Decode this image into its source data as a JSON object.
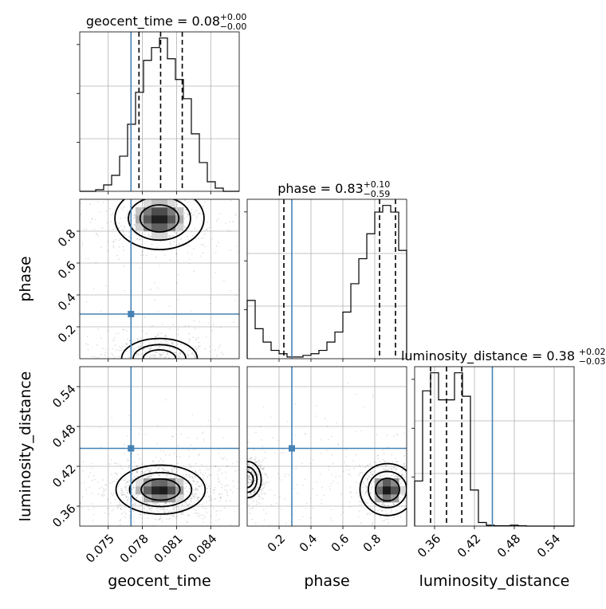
{
  "chart_data": {
    "type": "corner",
    "parameters": [
      {
        "name": "geocent_time",
        "axis_label": "geocent_time",
        "title_main": "geocent_time = 0.08",
        "title_sup": "+0.00",
        "title_sub": "−0.00",
        "range": [
          0.0725,
          0.0865
        ],
        "ticks": [
          0.075,
          0.078,
          0.081,
          0.084
        ],
        "tick_labels": [
          "0.075",
          "0.078",
          "0.081",
          "0.084"
        ],
        "truth": 0.077,
        "quantiles": [
          0.0777,
          0.0796,
          0.0815
        ],
        "hist": [
          0,
          0,
          1,
          4,
          10,
          22,
          42,
          62,
          82,
          90,
          96,
          83,
          70,
          58,
          36,
          18,
          6,
          2,
          0,
          0
        ]
      },
      {
        "name": "phase",
        "axis_label": "phase",
        "title_main": "phase = 0.83",
        "title_sup": "+0.10",
        "title_sub": "−0.59",
        "range": [
          0.0,
          1.0
        ],
        "ticks": [
          0.2,
          0.4,
          0.6,
          0.8
        ],
        "tick_labels": [
          "0.2",
          "0.4",
          "0.6",
          "0.8"
        ],
        "truth": 0.28,
        "quantiles": [
          0.23,
          0.83,
          0.93
        ],
        "hist": [
          35,
          18,
          10,
          5,
          3,
          1,
          1,
          2,
          3,
          5,
          10,
          16,
          28,
          45,
          60,
          75,
          88,
          92,
          88,
          65
        ]
      },
      {
        "name": "luminosity_distance",
        "axis_label": "luminosity_distance",
        "title_main": "luminosity_distance = 0.38",
        "title_sup": "+0.02",
        "title_sub": "−0.03",
        "range": [
          0.33,
          0.57
        ],
        "ticks": [
          0.36,
          0.42,
          0.48,
          0.54
        ],
        "tick_labels": [
          "0.36",
          "0.42",
          "0.48",
          "0.54"
        ],
        "truth": 0.447,
        "quantiles": [
          0.354,
          0.378,
          0.401
        ],
        "hist": [
          25,
          75,
          85,
          70,
          70,
          85,
          72,
          20,
          2,
          0.5,
          0.2,
          0.2,
          0.5,
          0.2,
          0,
          0,
          0,
          0,
          0,
          0
        ]
      }
    ],
    "pairs": [
      {
        "x": "geocent_time",
        "y": "phase",
        "modes": [
          {
            "cx": 0.0795,
            "cy": 0.88,
            "sx": 0.0017,
            "sy": 0.085,
            "w": 1.0
          },
          {
            "cx": 0.0795,
            "cy": 0.0,
            "sx": 0.0017,
            "sy": 0.065,
            "w": 0.35
          }
        ]
      },
      {
        "x": "geocent_time",
        "y": "luminosity_distance",
        "modes": [
          {
            "cx": 0.0796,
            "cy": 0.385,
            "sx": 0.0017,
            "sy": 0.016,
            "w": 1.0
          }
        ]
      },
      {
        "x": "phase",
        "y": "luminosity_distance",
        "modes": [
          {
            "cx": 0.88,
            "cy": 0.385,
            "sx": 0.075,
            "sy": 0.017,
            "w": 1.0
          },
          {
            "cx": 0.0,
            "cy": 0.4,
            "sx": 0.045,
            "sy": 0.014,
            "w": 0.4
          }
        ]
      }
    ],
    "truth_color": "#4682b4",
    "grid": true
  }
}
